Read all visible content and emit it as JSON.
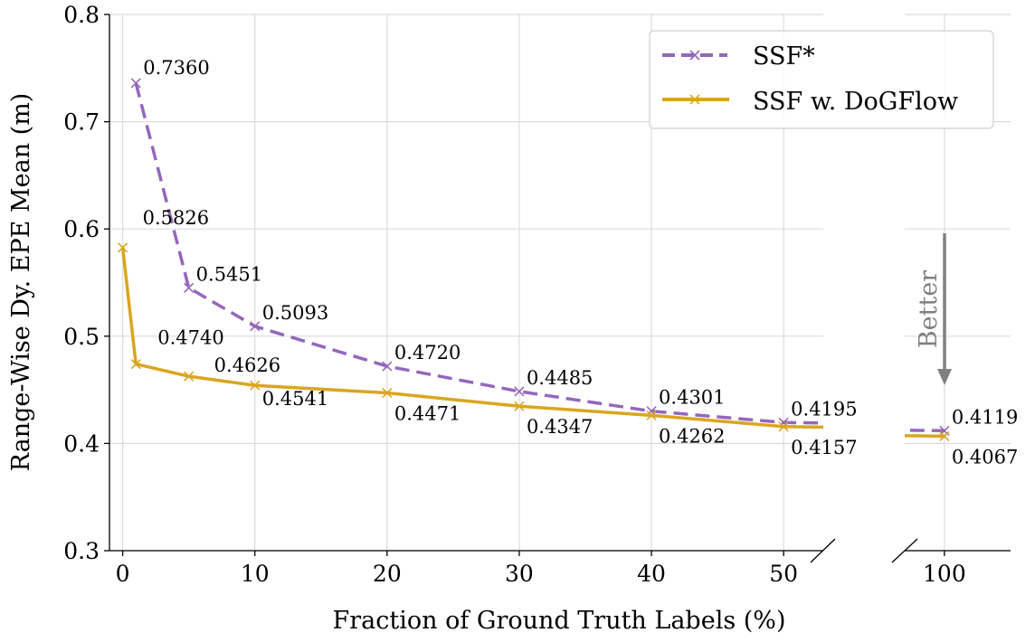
{
  "chart_data": {
    "type": "line",
    "title": "",
    "xlabel": "Fraction of Ground Truth Labels (%)",
    "ylabel": "Range-Wise Dy. EPE Mean (m)",
    "ylim": [
      0.3,
      0.8
    ],
    "yticks": [
      "0.3",
      "0.4",
      "0.5",
      "0.6",
      "0.7",
      "0.8"
    ],
    "xlim_left_panel": [
      -1,
      53
    ],
    "xlim_right_panel": [
      97,
      105
    ],
    "xticks": [
      "0",
      "10",
      "20",
      "30",
      "40",
      "50",
      "100"
    ],
    "broken_x_axis": true,
    "grid": true,
    "legend_position": "top-right",
    "annotation": {
      "text": "Better",
      "direction": "down",
      "color": "#808080"
    },
    "series": [
      {
        "name": "SSF*",
        "color": "#9467bd",
        "linestyle": "dashed",
        "marker": "x",
        "x": [
          1,
          5,
          10,
          20,
          30,
          40,
          50,
          100
        ],
        "y": [
          0.736,
          0.5451,
          0.5093,
          0.472,
          0.4485,
          0.4301,
          0.4195,
          0.4119
        ],
        "labels": [
          "0.7360",
          "0.5451",
          "0.5093",
          "0.4720",
          "0.4485",
          "0.4301",
          "0.4195",
          "0.4119"
        ]
      },
      {
        "name": "SSF w. DoGFlow",
        "color": "#daa520",
        "linestyle": "solid",
        "marker": "x",
        "x": [
          0,
          1,
          5,
          10,
          20,
          30,
          40,
          50,
          100
        ],
        "y": [
          0.5826,
          0.474,
          0.4626,
          0.4541,
          0.4471,
          0.4347,
          0.4262,
          0.4157,
          0.4067
        ],
        "labels": [
          "0.5826",
          "0.4740",
          "0.4626",
          "0.4541",
          "0.4471",
          "0.4347",
          "0.4262",
          "0.4157",
          "0.4067"
        ]
      }
    ]
  }
}
